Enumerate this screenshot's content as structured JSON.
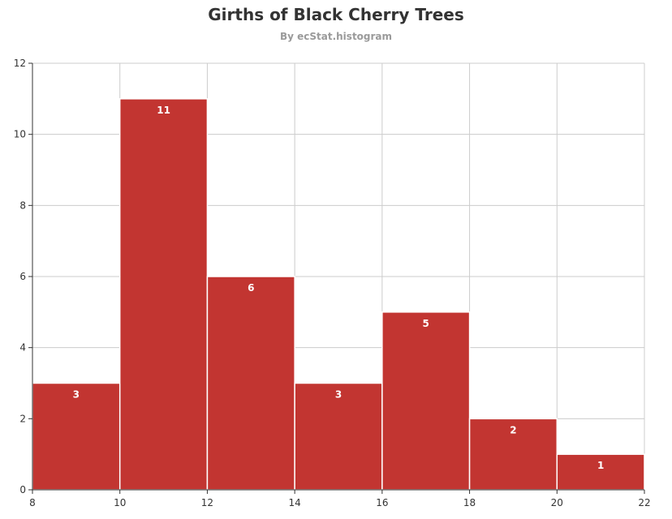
{
  "title": "Girths of Black Cherry Trees",
  "subtitle": "By ecStat.histogram",
  "colors": {
    "bar": "#c23531",
    "grid": "#cccccc",
    "axis": "#333333",
    "label": "#ffffff"
  },
  "chart_data": {
    "type": "bar",
    "title": "Girths of Black Cherry Trees",
    "subtitle": "By ecStat.histogram",
    "xlabel": "",
    "ylabel": "",
    "xlim": [
      8,
      22
    ],
    "ylim": [
      0,
      12
    ],
    "x_ticks": [
      8,
      10,
      12,
      14,
      16,
      18,
      20,
      22
    ],
    "y_ticks": [
      0,
      2,
      4,
      6,
      8,
      10,
      12
    ],
    "bins": [
      {
        "x0": 8,
        "x1": 10,
        "value": 3
      },
      {
        "x0": 10,
        "x1": 12,
        "value": 11
      },
      {
        "x0": 12,
        "x1": 14,
        "value": 6
      },
      {
        "x0": 14,
        "x1": 16,
        "value": 3
      },
      {
        "x0": 16,
        "x1": 18,
        "value": 5
      },
      {
        "x0": 18,
        "x1": 20,
        "value": 2
      },
      {
        "x0": 20,
        "x1": 22,
        "value": 1
      }
    ],
    "grid": true,
    "legend": "none"
  }
}
